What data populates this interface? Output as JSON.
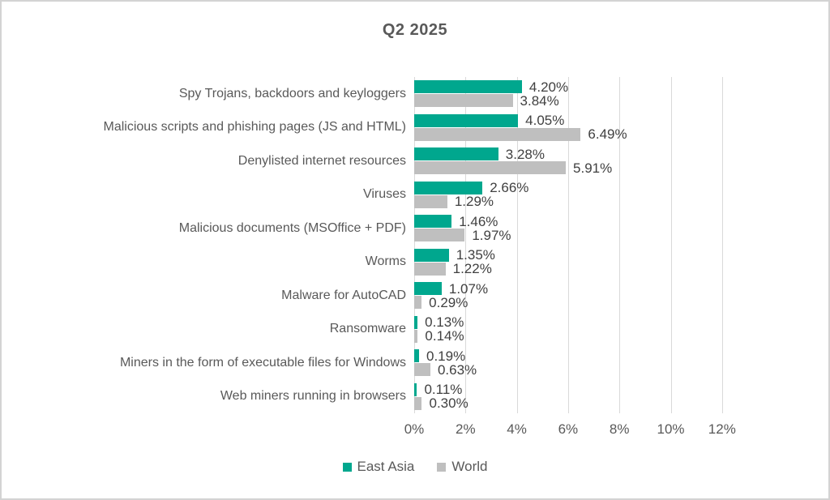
{
  "title": "Q2 2025",
  "chart_data": {
    "type": "bar",
    "orientation": "horizontal",
    "title": "Q2 2025",
    "categories": [
      "Spy Trojans, backdoors and keyloggers",
      "Malicious scripts and phishing pages (JS and HTML)",
      "Denylisted internet resources",
      "Viruses",
      "Malicious documents (MSOffice + PDF)",
      "Worms",
      "Malware for AutoCAD",
      "Ransomware",
      "Miners in the form of executable files for Windows",
      "Web miners running in browsers"
    ],
    "series": [
      {
        "name": "East Asia",
        "color": "#00A78E",
        "values": [
          4.2,
          4.05,
          3.28,
          2.66,
          1.46,
          1.35,
          1.07,
          0.13,
          0.19,
          0.11
        ]
      },
      {
        "name": "World",
        "color": "#BFBFBF",
        "values": [
          3.84,
          6.49,
          5.91,
          1.29,
          1.97,
          1.22,
          0.29,
          0.14,
          0.63,
          0.3
        ]
      }
    ],
    "value_labels": [
      [
        "4.20%",
        "4.05%",
        "3.28%",
        "2.66%",
        "1.46%",
        "1.35%",
        "1.07%",
        "0.13%",
        "0.19%",
        "0.11%"
      ],
      [
        "3.84%",
        "6.49%",
        "5.91%",
        "1.29%",
        "1.97%",
        "1.22%",
        "0.29%",
        "0.14%",
        "0.63%",
        "0.30%"
      ]
    ],
    "xlim": [
      0,
      13
    ],
    "x_ticks": [
      0,
      2,
      4,
      6,
      8,
      10,
      12
    ],
    "x_tick_labels": [
      "0%",
      "2%",
      "4%",
      "6%",
      "8%",
      "10%",
      "12%"
    ],
    "grid": true,
    "legend_position": "bottom",
    "colors": {
      "east_asia_bar": "#00A78E",
      "world_bar": "#BFBFBF",
      "gridline": "#D9D9D9",
      "category_text": "#595959",
      "value_text": "#404040",
      "title_text": "#595959",
      "panel_border": "#D3D3D3"
    }
  }
}
